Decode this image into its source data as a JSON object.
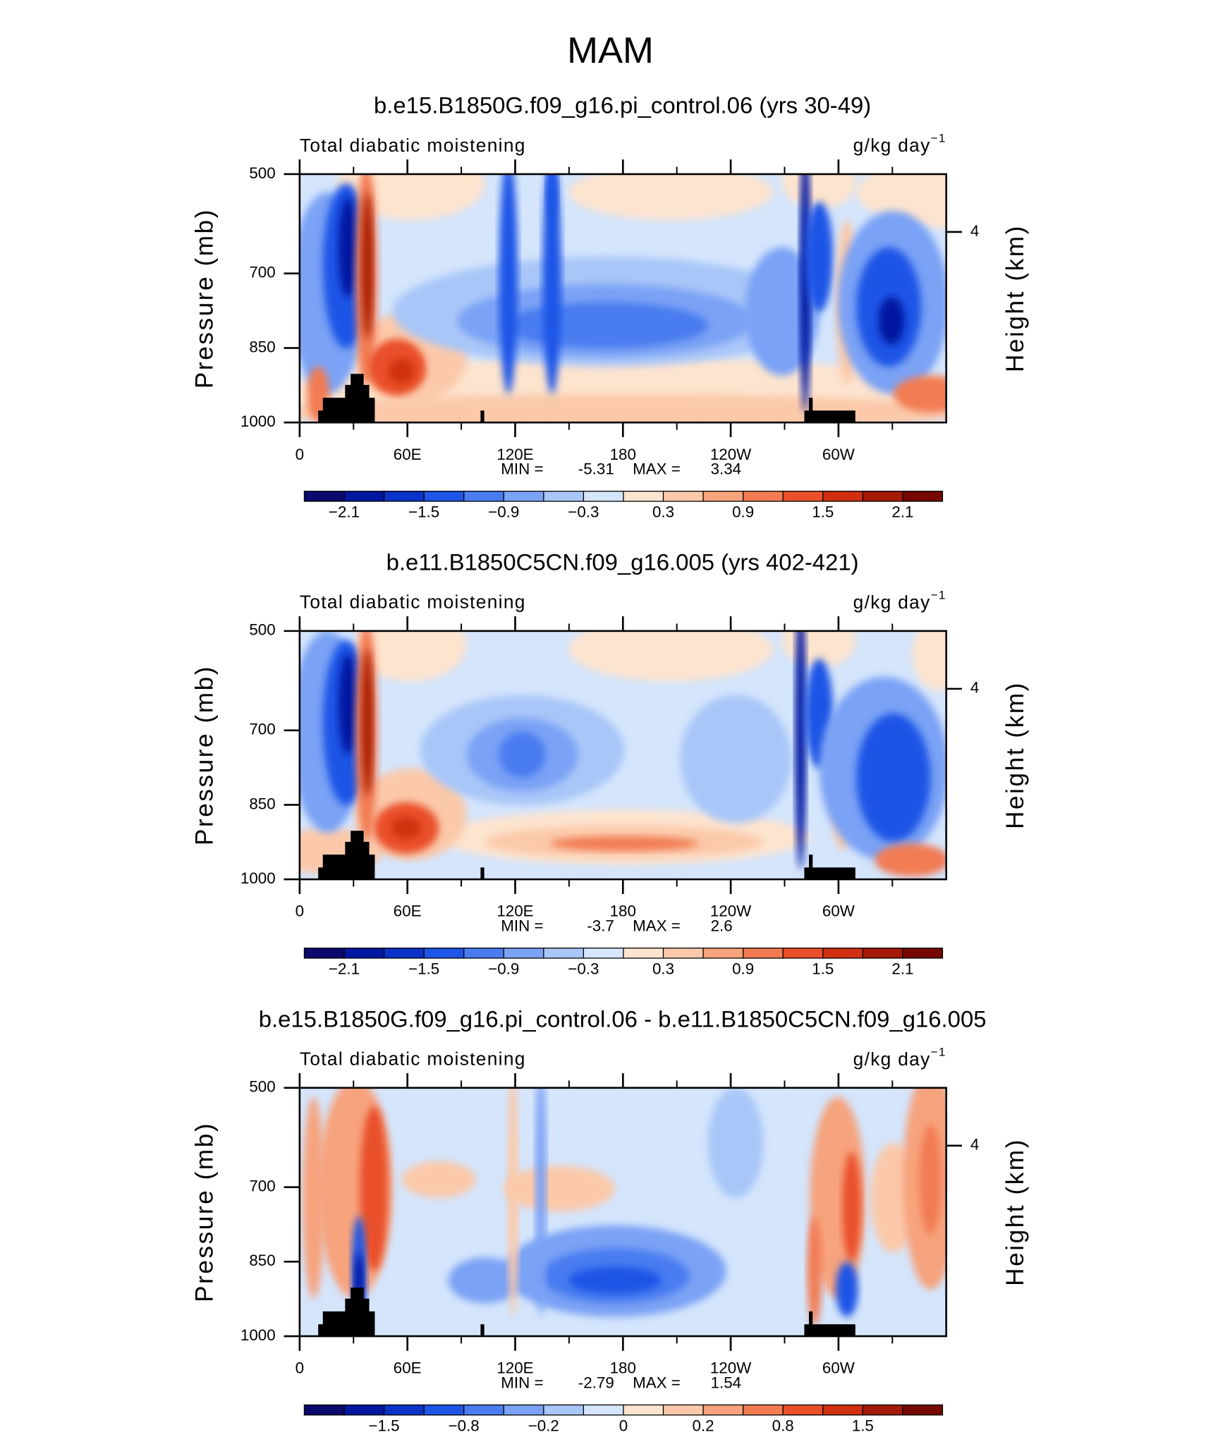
{
  "title": "MAM",
  "chart_data": [
    {
      "type": "contour",
      "title": "b.e15.B1850G.f09_g16.pi_control.06 (yrs 30-49)",
      "left_label": "Total diabatic moistening",
      "units": "g/kg day",
      "units_exponent": "−1",
      "ylabel": "Pressure (mb)",
      "y2label": "Height (km)",
      "ylim": [
        1000,
        500
      ],
      "yticks": [
        500,
        700,
        850,
        1000
      ],
      "y2ticks": [
        4
      ],
      "xlim": [
        0,
        360
      ],
      "xticks": [
        0,
        {
          "value": 60,
          "label": "60E"
        },
        {
          "value": 120,
          "label": "120E"
        },
        180,
        {
          "value": 240,
          "label": "120W"
        },
        {
          "value": 300,
          "label": "60W"
        }
      ],
      "xminor": [
        30,
        90,
        150,
        210,
        270,
        330
      ],
      "min_label": "MIN =",
      "min": -5.31,
      "max_label": "MAX =",
      "max": 3.34,
      "colorbar": {
        "levels": [
          -2.1,
          -1.8,
          -1.5,
          -1.2,
          -0.9,
          -0.6,
          -0.3,
          0,
          0.3,
          0.6,
          0.9,
          1.2,
          1.5,
          1.8,
          2.1
        ],
        "colors": [
          "#0a0a6e",
          "#0018a0",
          "#0a34c8",
          "#1f55e6",
          "#4a7cf0",
          "#7aa2f5",
          "#a9c6f8",
          "#d4e5fc",
          "#fde4cf",
          "#fbc9aa",
          "#f7a37d",
          "#f27b52",
          "#e9502a",
          "#cf3010",
          "#a41a06",
          "#760800"
        ],
        "ticks": [
          {
            "value": -2.1,
            "label": "−2.1"
          },
          {
            "value": -1.5,
            "label": "−1.5"
          },
          {
            "value": -0.9,
            "label": "−0.9"
          },
          {
            "value": -0.3,
            "label": "−0.3"
          },
          0.3,
          0.9,
          1.5,
          2.1
        ]
      }
    },
    {
      "type": "contour",
      "title": "b.e11.B1850C5CN.f09_g16.005 (yrs 402-421)",
      "left_label": "Total diabatic moistening",
      "units": "g/kg day",
      "units_exponent": "−1",
      "ylabel": "Pressure (mb)",
      "y2label": "Height (km)",
      "ylim": [
        1000,
        500
      ],
      "yticks": [
        500,
        700,
        850,
        1000
      ],
      "y2ticks": [
        4
      ],
      "xlim": [
        0,
        360
      ],
      "xticks": [
        0,
        {
          "value": 60,
          "label": "60E"
        },
        {
          "value": 120,
          "label": "120E"
        },
        180,
        {
          "value": 240,
          "label": "120W"
        },
        {
          "value": 300,
          "label": "60W"
        }
      ],
      "xminor": [
        30,
        90,
        150,
        210,
        270,
        330
      ],
      "min_label": "MIN =",
      "min": -3.7,
      "max_label": "MAX =",
      "max": 2.6,
      "colorbar": {
        "levels": [
          -2.1,
          -1.8,
          -1.5,
          -1.2,
          -0.9,
          -0.6,
          -0.3,
          0,
          0.3,
          0.6,
          0.9,
          1.2,
          1.5,
          1.8,
          2.1
        ],
        "colors": [
          "#0a0a6e",
          "#0018a0",
          "#0a34c8",
          "#1f55e6",
          "#4a7cf0",
          "#7aa2f5",
          "#a9c6f8",
          "#d4e5fc",
          "#fde4cf",
          "#fbc9aa",
          "#f7a37d",
          "#f27b52",
          "#e9502a",
          "#cf3010",
          "#a41a06",
          "#760800"
        ],
        "ticks": [
          {
            "value": -2.1,
            "label": "−2.1"
          },
          {
            "value": -1.5,
            "label": "−1.5"
          },
          {
            "value": -0.9,
            "label": "−0.9"
          },
          {
            "value": -0.3,
            "label": "−0.3"
          },
          0.3,
          0.9,
          1.5,
          2.1
        ]
      }
    },
    {
      "type": "contour",
      "title": "b.e15.B1850G.f09_g16.pi_control.06 - b.e11.B1850C5CN.f09_g16.005",
      "left_label": "Total diabatic moistening",
      "units": "g/kg day",
      "units_exponent": "−1",
      "ylabel": "Pressure (mb)",
      "y2label": "Height (km)",
      "ylim": [
        1000,
        500
      ],
      "yticks": [
        500,
        700,
        850,
        1000
      ],
      "y2ticks": [
        4
      ],
      "xlim": [
        0,
        360
      ],
      "xticks": [
        0,
        {
          "value": 60,
          "label": "60E"
        },
        {
          "value": 120,
          "label": "120E"
        },
        180,
        {
          "value": 240,
          "label": "120W"
        },
        {
          "value": 300,
          "label": "60W"
        }
      ],
      "xminor": [
        30,
        90,
        150,
        210,
        270,
        330
      ],
      "min_label": "MIN =",
      "min": -2.79,
      "max_label": "MAX =",
      "max": 1.54,
      "colorbar": {
        "levels": [
          -1.8,
          -1.5,
          -1.2,
          -0.8,
          -0.5,
          -0.2,
          -0.1,
          0,
          0.1,
          0.2,
          0.5,
          0.8,
          1.2,
          1.5,
          1.8
        ],
        "colors": [
          "#0a0a6e",
          "#0018a0",
          "#0a34c8",
          "#1f55e6",
          "#4a7cf0",
          "#7aa2f5",
          "#a9c6f8",
          "#d4e5fc",
          "#fde4cf",
          "#fbc9aa",
          "#f7a37d",
          "#f27b52",
          "#e9502a",
          "#cf3010",
          "#a41a06",
          "#760800"
        ],
        "ticks": [
          {
            "value": -1.5,
            "label": "−1.5"
          },
          {
            "value": -0.8,
            "label": "−0.8"
          },
          {
            "value": -0.2,
            "label": "−0.2"
          },
          0,
          0.2,
          0.8,
          1.5
        ]
      }
    }
  ]
}
